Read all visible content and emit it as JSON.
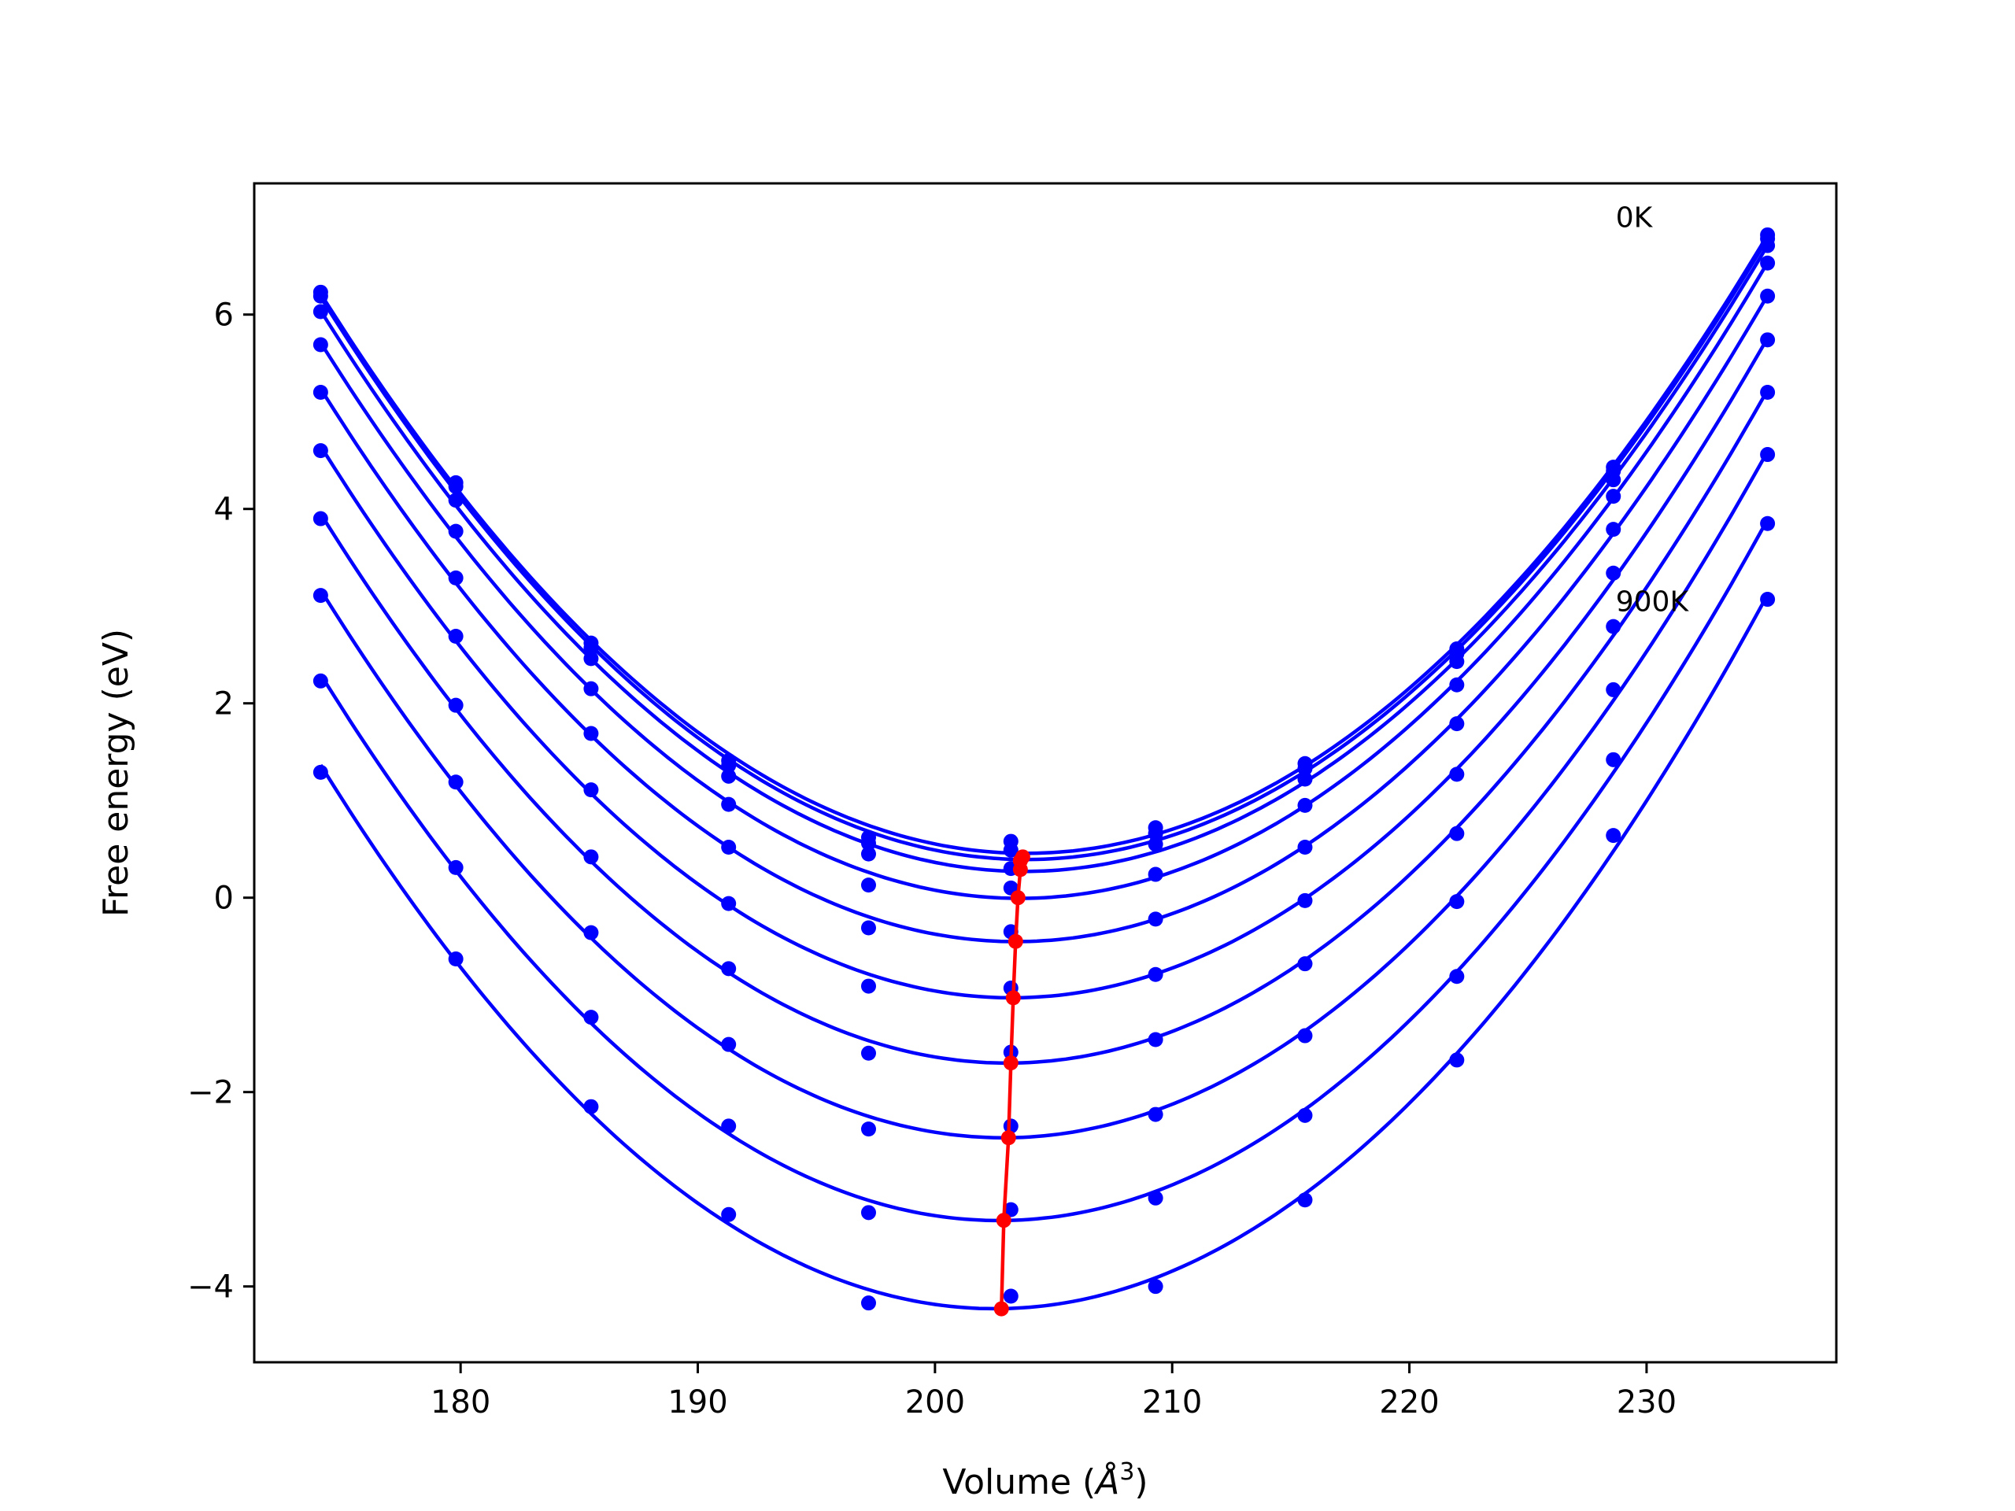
{
  "chart_data": {
    "type": "line",
    "xlabel": "Volume (",
    "xlabel_sym": "Å",
    "xlabel_exp": "3",
    "xlabel_close": ")",
    "ylabel": "Free energy (eV)",
    "xlim": [
      171.3,
      238.0
    ],
    "ylim": [
      -4.78,
      7.35
    ],
    "x_ticks": [
      180,
      190,
      200,
      210,
      220,
      230
    ],
    "y_ticks": [
      -4,
      -2,
      0,
      2,
      4,
      6
    ],
    "x_tick_labels": [
      "180",
      "190",
      "200",
      "210",
      "220",
      "230"
    ],
    "y_tick_labels": [
      "−4",
      "−2",
      "0",
      "2",
      "4",
      "6"
    ],
    "grid": false,
    "annotations": [
      {
        "text": "0K",
        "x": 228.7,
        "y": 6.9
      },
      {
        "text": "900K",
        "x": 228.7,
        "y": 2.95
      }
    ],
    "colors": {
      "fits": "#0000ff",
      "minima": "#ff0000",
      "frame": "#000000"
    },
    "volumes": [
      174.1,
      179.8,
      185.5,
      191.3,
      197.2,
      203.2,
      209.3,
      215.6,
      222.0,
      228.6,
      235.1
    ],
    "series": [
      {
        "values": [
          6.23,
          4.27,
          2.62,
          1.41,
          0.62,
          0.58,
          0.72,
          1.38,
          2.56,
          4.43,
          6.82
        ]
      },
      {
        "values": [
          6.19,
          4.23,
          2.57,
          1.36,
          0.56,
          0.49,
          0.66,
          1.33,
          2.51,
          4.39,
          6.78
        ]
      },
      {
        "values": [
          6.03,
          4.09,
          2.46,
          1.25,
          0.45,
          0.3,
          0.55,
          1.22,
          2.43,
          4.3,
          6.71
        ]
      },
      {
        "values": [
          5.69,
          3.77,
          2.15,
          0.96,
          0.13,
          0.1,
          0.24,
          0.95,
          2.19,
          4.13,
          6.53
        ]
      },
      {
        "values": [
          5.2,
          3.29,
          1.69,
          0.52,
          -0.31,
          -0.35,
          -0.22,
          0.52,
          1.79,
          3.79,
          6.19
        ]
      },
      {
        "values": [
          4.6,
          2.69,
          1.11,
          -0.06,
          -0.91,
          -0.93,
          -0.79,
          -0.03,
          1.27,
          3.34,
          5.74
        ]
      },
      {
        "values": [
          3.9,
          1.98,
          0.42,
          -0.73,
          -1.6,
          -1.59,
          -1.46,
          -0.68,
          0.66,
          2.79,
          5.2
        ]
      },
      {
        "values": [
          3.11,
          1.19,
          -0.36,
          -1.51,
          -2.38,
          -2.35,
          -2.23,
          -1.42,
          -0.04,
          2.14,
          4.56
        ]
      },
      {
        "values": [
          2.23,
          0.31,
          -1.23,
          -2.35,
          -3.24,
          -3.21,
          -3.09,
          -2.24,
          -0.81,
          1.42,
          3.85
        ]
      },
      {
        "values": [
          1.29,
          -0.63,
          -2.15,
          -3.26,
          -4.17,
          -4.1,
          -4.0,
          -3.11,
          -1.67,
          0.64,
          3.07
        ]
      }
    ],
    "minima": {
      "x": [
        203.7,
        203.6,
        203.6,
        203.5,
        203.4,
        203.3,
        203.2,
        203.1,
        202.9,
        202.8
      ],
      "y": [
        0.42,
        0.38,
        0.29,
        0.0,
        -0.45,
        -1.03,
        -1.7,
        -2.47,
        -3.32,
        -4.23
      ]
    }
  }
}
